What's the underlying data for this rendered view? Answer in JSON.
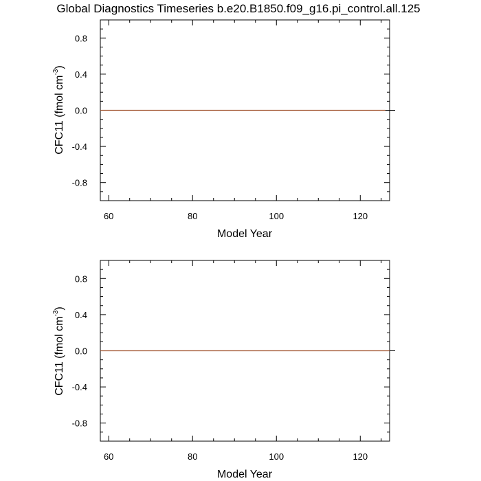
{
  "title": "Global Diagnostics Timeseries b.e20.B1850.f09_g16.pi_control.all.125",
  "colors": {
    "series": "#a0522d",
    "axes": "#000000",
    "zero_line": "#000000"
  },
  "chart_data": [
    {
      "type": "line",
      "xlabel": "Model Year",
      "ylabel_main": "CFC11  (fmol cm",
      "ylabel_sup": "-3",
      "ylabel_close": ")",
      "xlim": [
        58,
        127
      ],
      "ylim": [
        -1.0,
        1.0
      ],
      "xticks": [
        60,
        80,
        100,
        120
      ],
      "xtick_labels": [
        "60",
        "80",
        "100",
        "120"
      ],
      "yticks": [
        -0.8,
        -0.4,
        0.0,
        0.4,
        0.8
      ],
      "ytick_labels": [
        "-0.8",
        "-0.4",
        "0.0",
        "0.4",
        "0.8"
      ],
      "zero_reference_line": true,
      "series": [
        {
          "x": [
            58,
            126
          ],
          "y": [
            0.0,
            0.0
          ]
        }
      ]
    },
    {
      "type": "line",
      "xlabel": "Model Year",
      "ylabel_main": "CFC11  (fmol cm",
      "ylabel_sup": "-3",
      "ylabel_close": ")",
      "xlim": [
        58,
        127
      ],
      "ylim": [
        -1.0,
        1.0
      ],
      "xticks": [
        60,
        80,
        100,
        120
      ],
      "xtick_labels": [
        "60",
        "80",
        "100",
        "120"
      ],
      "yticks": [
        -0.8,
        -0.4,
        0.0,
        0.4,
        0.8
      ],
      "ytick_labels": [
        "-0.8",
        "-0.4",
        "0.0",
        "0.4",
        "0.8"
      ],
      "zero_reference_line": true,
      "series": [
        {
          "x": [
            58,
            127
          ],
          "y": [
            0.0,
            0.0
          ]
        }
      ]
    }
  ]
}
